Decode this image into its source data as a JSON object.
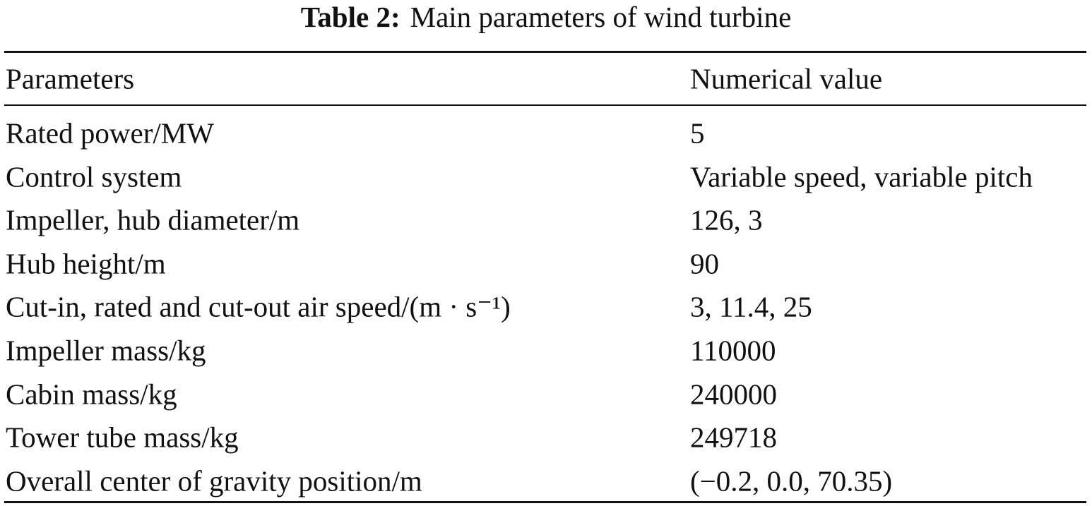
{
  "caption": {
    "label": "Table 2:",
    "text": "Main parameters of wind turbine"
  },
  "table": {
    "header": [
      "Parameters",
      "Numerical value"
    ],
    "rows": [
      [
        "Rated power/MW",
        "5"
      ],
      [
        "Control system",
        "Variable speed, variable pitch"
      ],
      [
        "Impeller, hub diameter/m",
        "126, 3"
      ],
      [
        "Hub height/m",
        "90"
      ],
      [
        "Cut-in, rated and cut-out air speed/(m · s⁻¹)",
        "3, 11.4, 25"
      ],
      [
        "Impeller mass/kg",
        "110000"
      ],
      [
        "Cabin mass/kg",
        "240000"
      ],
      [
        "Tower tube mass/kg",
        "249718"
      ],
      [
        "Overall center of gravity position/m",
        "(−0.2, 0.0, 70.35)"
      ]
    ]
  }
}
